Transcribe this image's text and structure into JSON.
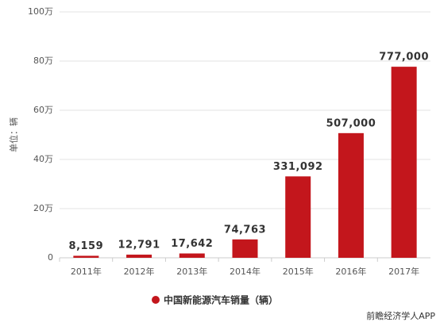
{
  "chart_data": {
    "type": "bar",
    "y_label": "单位：辆",
    "categories": [
      "2011年",
      "2012年",
      "2013年",
      "2014年",
      "2015年",
      "2016年",
      "2017年"
    ],
    "series": [
      {
        "name": "中国新能源汽车销量（辆）",
        "color": "#c3161c",
        "values": [
          8159,
          12791,
          17642,
          74763,
          331092,
          507000,
          777000
        ],
        "value_labels": [
          "8,159",
          "12,791",
          "17,642",
          "74,763",
          "331,092",
          "507,000",
          "777,000"
        ]
      }
    ],
    "ylim": [
      0,
      1000000
    ],
    "yticks": [
      0,
      {
        "value": 200000,
        "label": "20万"
      },
      {
        "value": 400000,
        "label": "40万"
      },
      {
        "value": 600000,
        "label": "60万"
      },
      {
        "value": 800000,
        "label": "80万"
      },
      {
        "value": 1000000,
        "label": "100万"
      }
    ],
    "grid": true,
    "footer": "前瞻经济学人APP"
  }
}
